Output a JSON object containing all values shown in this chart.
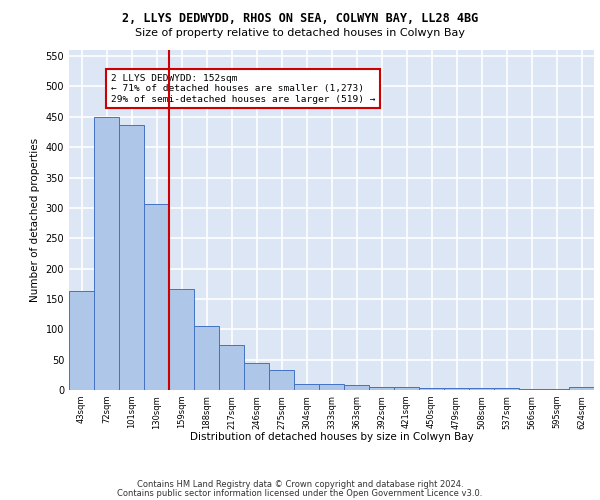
{
  "title1": "2, LLYS DEDWYDD, RHOS ON SEA, COLWYN BAY, LL28 4BG",
  "title2": "Size of property relative to detached houses in Colwyn Bay",
  "xlabel": "Distribution of detached houses by size in Colwyn Bay",
  "ylabel": "Number of detached properties",
  "footer1": "Contains HM Land Registry data © Crown copyright and database right 2024.",
  "footer2": "Contains public sector information licensed under the Open Government Licence v3.0.",
  "categories": [
    "43sqm",
    "72sqm",
    "101sqm",
    "130sqm",
    "159sqm",
    "188sqm",
    "217sqm",
    "246sqm",
    "275sqm",
    "304sqm",
    "333sqm",
    "363sqm",
    "392sqm",
    "421sqm",
    "450sqm",
    "479sqm",
    "508sqm",
    "537sqm",
    "566sqm",
    "595sqm",
    "624sqm"
  ],
  "values": [
    163,
    450,
    437,
    307,
    167,
    106,
    74,
    44,
    33,
    10,
    10,
    8,
    5,
    5,
    4,
    4,
    3,
    3,
    2,
    2,
    5
  ],
  "bar_color": "#aec6e8",
  "bar_edge_color": "#4472c4",
  "vline_x_index": 4,
  "vline_color": "#cc0000",
  "annotation_text": "2 LLYS DEDWYDD: 152sqm\n← 71% of detached houses are smaller (1,273)\n29% of semi-detached houses are larger (519) →",
  "annotation_box_color": "#cc0000",
  "ylim": [
    0,
    560
  ],
  "yticks": [
    0,
    50,
    100,
    150,
    200,
    250,
    300,
    350,
    400,
    450,
    500,
    550
  ],
  "bg_color": "#dce6f5",
  "grid_color": "#ffffff"
}
